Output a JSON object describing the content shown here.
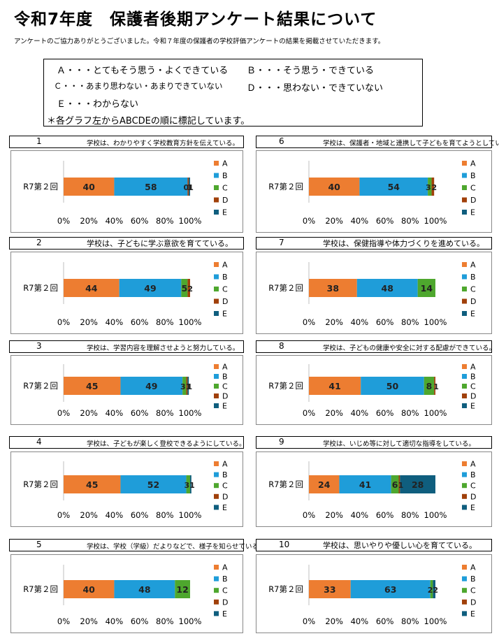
{
  "title": "令和7年度　保護者後期アンケート結果について",
  "intro": "アンケートのご協力ありがとうございました。令和７年度の保護者の学校評価アンケートの結果を掲載させていただきます。",
  "legend_box": {
    "line1_a": "Ａ・・・とてもそう思う・よくできている",
    "line1_b": "Ｂ・・・そう思う・できている",
    "line2_c": "Ｃ・・・あまり思わない・あまりできていない",
    "line2_d": "Ｄ・・・思わない・できていない",
    "line3_e": "Ｅ・・・わからない",
    "note": "＊各グラフ左からABCDEの順に標記しています。"
  },
  "colors": {
    "A": "#ED7D31",
    "B": "#1F9DD9",
    "C": "#4EA72E",
    "D": "#A0400A",
    "E": "#0F5E7E"
  },
  "chart_data": [
    {
      "type": "bar",
      "orientation": "horizontal-stacked",
      "number": "1",
      "question": "学校は、わかりやすく学校教育方針を伝えている。",
      "category": "R7第２回",
      "series": [
        {
          "name": "A",
          "values": [
            40
          ]
        },
        {
          "name": "B",
          "values": [
            58
          ]
        },
        {
          "name": "C",
          "values": [
            0
          ]
        },
        {
          "name": "D",
          "values": [
            1
          ]
        },
        {
          "name": "E",
          "values": [
            1
          ]
        }
      ],
      "ticks": [
        "0%",
        "20%",
        "40%",
        "60%",
        "80%",
        "100%"
      ],
      "xlim": [
        0,
        100
      ]
    },
    {
      "type": "bar",
      "orientation": "horizontal-stacked",
      "number": "2",
      "question": "学校は、子どもに学ぶ意欲を育てている。",
      "category": "R7第２回",
      "series": [
        {
          "name": "A",
          "values": [
            44
          ]
        },
        {
          "name": "B",
          "values": [
            49
          ]
        },
        {
          "name": "C",
          "values": [
            5
          ]
        },
        {
          "name": "D",
          "values": [
            2
          ]
        },
        {
          "name": "E",
          "values": [
            0
          ]
        }
      ],
      "ticks": [
        "0%",
        "20%",
        "40%",
        "60%",
        "80%",
        "100%"
      ],
      "xlim": [
        0,
        100
      ]
    },
    {
      "type": "bar",
      "orientation": "horizontal-stacked",
      "number": "3",
      "question": "学校は、学習内容を理解させようと努力している。",
      "category": "R7第２回",
      "series": [
        {
          "name": "A",
          "values": [
            45
          ]
        },
        {
          "name": "B",
          "values": [
            49
          ]
        },
        {
          "name": "C",
          "values": [
            3
          ]
        },
        {
          "name": "D",
          "values": [
            1
          ]
        },
        {
          "name": "E",
          "values": [
            1
          ]
        }
      ],
      "ticks": [
        "0%",
        "20%",
        "40%",
        "60%",
        "80%",
        "100%"
      ],
      "xlim": [
        0,
        100
      ]
    },
    {
      "type": "bar",
      "orientation": "horizontal-stacked",
      "number": "4",
      "question": "学校は、子どもが楽しく登校できるようにしている。",
      "category": "R7第２回",
      "series": [
        {
          "name": "A",
          "values": [
            45
          ]
        },
        {
          "name": "B",
          "values": [
            52
          ]
        },
        {
          "name": "C",
          "values": [
            3
          ]
        },
        {
          "name": "D",
          "values": [
            0
          ]
        },
        {
          "name": "E",
          "values": [
            1
          ]
        }
      ],
      "ticks": [
        "0%",
        "20%",
        "40%",
        "60%",
        "80%",
        "100%"
      ],
      "xlim": [
        0,
        100
      ]
    },
    {
      "type": "bar",
      "orientation": "horizontal-stacked",
      "number": "5",
      "question": "学校は、学校（学級）だよりなどで、様子を知らせている。",
      "category": "R7第２回",
      "series": [
        {
          "name": "A",
          "values": [
            40
          ]
        },
        {
          "name": "B",
          "values": [
            48
          ]
        },
        {
          "name": "C",
          "values": [
            12
          ]
        },
        {
          "name": "D",
          "values": [
            0
          ]
        },
        {
          "name": "E",
          "values": [
            0
          ]
        }
      ],
      "ticks": [
        "0%",
        "20%",
        "40%",
        "60%",
        "80%",
        "100%"
      ],
      "xlim": [
        0,
        100
      ]
    },
    {
      "type": "bar",
      "orientation": "horizontal-stacked",
      "number": "6",
      "question": "学校は、保護者・地域と連携して子どもを育てようとしている。",
      "category": "R7第２回",
      "series": [
        {
          "name": "A",
          "values": [
            40
          ]
        },
        {
          "name": "B",
          "values": [
            54
          ]
        },
        {
          "name": "C",
          "values": [
            3
          ]
        },
        {
          "name": "D",
          "values": [
            2
          ]
        },
        {
          "name": "E",
          "values": [
            0
          ]
        }
      ],
      "ticks": [
        "0%",
        "20%",
        "40%",
        "60%",
        "80%",
        "100%"
      ],
      "xlim": [
        0,
        100
      ]
    },
    {
      "type": "bar",
      "orientation": "horizontal-stacked",
      "number": "7",
      "question": "学校は、保健指導や体力づくりを進めている。",
      "category": "R7第２回",
      "series": [
        {
          "name": "A",
          "values": [
            38
          ]
        },
        {
          "name": "B",
          "values": [
            48
          ]
        },
        {
          "name": "C",
          "values": [
            14
          ]
        },
        {
          "name": "D",
          "values": [
            0
          ]
        },
        {
          "name": "E",
          "values": [
            0
          ]
        }
      ],
      "ticks": [
        "0%",
        "20%",
        "40%",
        "60%",
        "80%",
        "100%"
      ],
      "xlim": [
        0,
        100
      ]
    },
    {
      "type": "bar",
      "orientation": "horizontal-stacked",
      "number": "8",
      "question": "学校は、子どもの健康や安全に対する配慮ができている。",
      "category": "R7第２回",
      "series": [
        {
          "name": "A",
          "values": [
            41
          ]
        },
        {
          "name": "B",
          "values": [
            50
          ]
        },
        {
          "name": "C",
          "values": [
            8
          ]
        },
        {
          "name": "D",
          "values": [
            1
          ]
        },
        {
          "name": "E",
          "values": [
            0
          ]
        }
      ],
      "ticks": [
        "0%",
        "20%",
        "40%",
        "60%",
        "80%",
        "100%"
      ],
      "xlim": [
        0,
        100
      ]
    },
    {
      "type": "bar",
      "orientation": "horizontal-stacked",
      "number": "9",
      "question": "学校は、いじめ等に対して適切な指導をしている。",
      "category": "R7第２回",
      "series": [
        {
          "name": "A",
          "values": [
            24
          ]
        },
        {
          "name": "B",
          "values": [
            41
          ]
        },
        {
          "name": "C",
          "values": [
            6
          ]
        },
        {
          "name": "D",
          "values": [
            1
          ]
        },
        {
          "name": "E",
          "values": [
            28
          ]
        }
      ],
      "ticks": [
        "0%",
        "20%",
        "40%",
        "60%",
        "80%",
        "100%"
      ],
      "xlim": [
        0,
        100
      ]
    },
    {
      "type": "bar",
      "orientation": "horizontal-stacked",
      "number": "10",
      "question": "学校は、思いやりや優しい心を育てている。",
      "category": "R7第２回",
      "series": [
        {
          "name": "A",
          "values": [
            33
          ]
        },
        {
          "name": "B",
          "values": [
            63
          ]
        },
        {
          "name": "C",
          "values": [
            2
          ]
        },
        {
          "name": "D",
          "values": [
            0
          ]
        },
        {
          "name": "E",
          "values": [
            2
          ]
        }
      ],
      "ticks": [
        "0%",
        "20%",
        "40%",
        "60%",
        "80%",
        "100%"
      ],
      "xlim": [
        0,
        100
      ]
    }
  ]
}
